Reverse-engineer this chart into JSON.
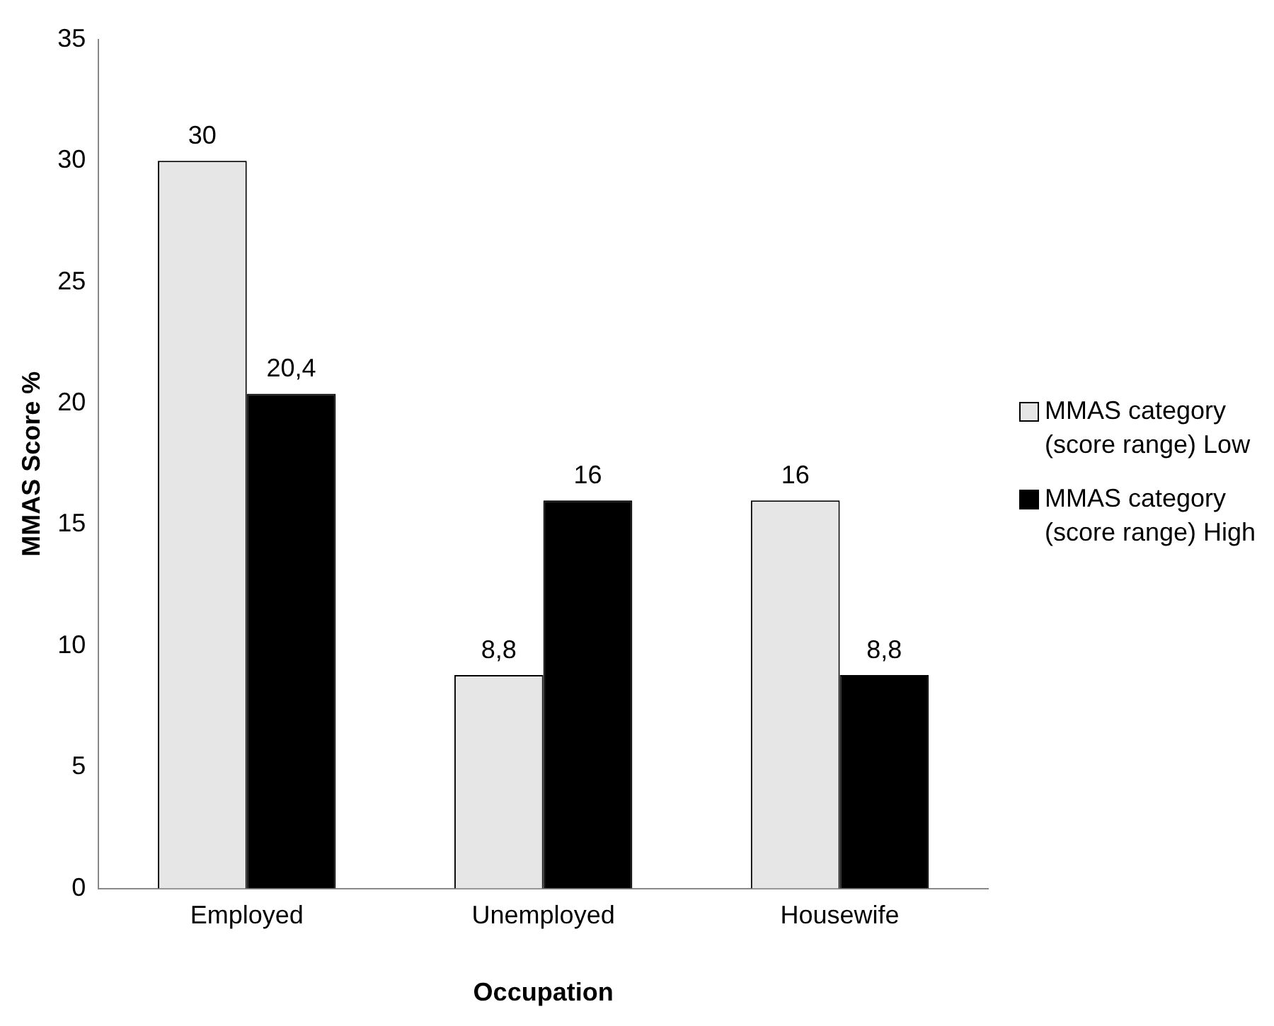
{
  "chart_data": {
    "type": "bar",
    "xlabel": "Occupation",
    "ylabel": "MMAS Score %",
    "categories": [
      "Employed",
      "Unemployed",
      "Housewife"
    ],
    "series": [
      {
        "name": "MMAS category (score range) Low",
        "color": "#e6e6e6",
        "values": [
          30,
          8.8,
          16
        ],
        "value_labels": [
          "30",
          "8,8",
          "16"
        ]
      },
      {
        "name": "MMAS category (score range) High",
        "color": "#000000",
        "values": [
          20.4,
          16,
          8.8
        ],
        "value_labels": [
          "20,4",
          "16",
          "8,8"
        ]
      }
    ],
    "ylim": [
      0,
      35
    ],
    "yticks": [
      0,
      5,
      10,
      15,
      20,
      25,
      30,
      35
    ],
    "grid": false,
    "legend": "right"
  }
}
